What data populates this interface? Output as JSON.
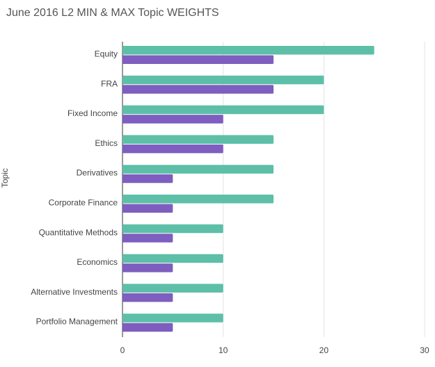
{
  "chart_data": {
    "type": "bar",
    "orientation": "horizontal",
    "title": "June 2016 L2 MIN & MAX Topic WEIGHTS",
    "ylabel": "Topic",
    "xlabel": "",
    "categories": [
      "Equity",
      "FRA",
      "Fixed Income",
      "Ethics",
      "Derivatives",
      "Corporate Finance",
      "Quantitative Methods",
      "Economics",
      "Alternative Investments",
      "Portfolio Management"
    ],
    "series": [
      {
        "values": [
          25,
          20,
          20,
          15,
          15,
          15,
          10,
          10,
          10,
          10
        ],
        "color": "#5dbfa8"
      },
      {
        "values": [
          15,
          15,
          10,
          10,
          5,
          5,
          5,
          5,
          5,
          5
        ],
        "color": "#7e5ebf"
      }
    ],
    "xlim": [
      0,
      30
    ],
    "xticks": [
      0,
      10,
      20,
      30
    ],
    "grid": true,
    "legend": "none"
  }
}
